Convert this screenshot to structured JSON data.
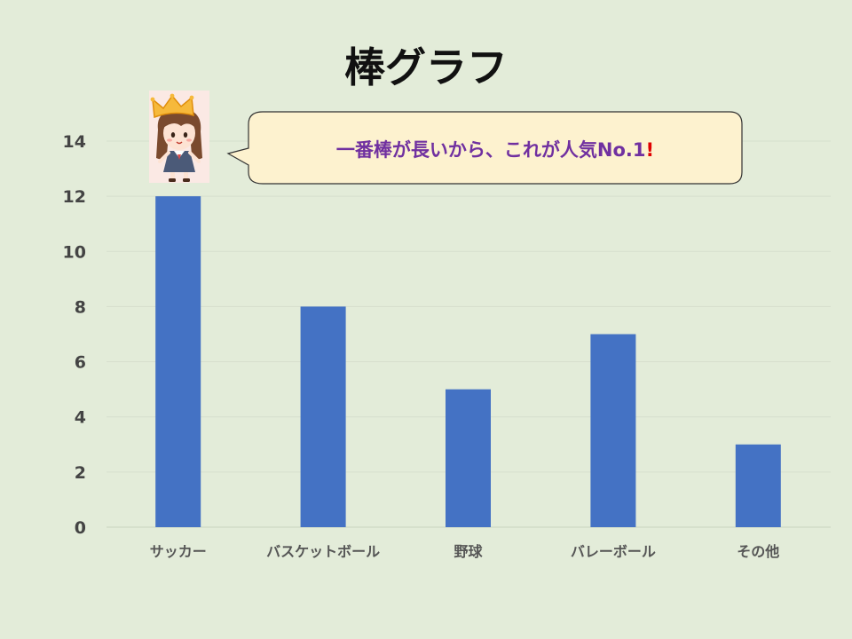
{
  "chart_data": {
    "type": "bar",
    "title": "棒グラフ",
    "categories": [
      "サッカー",
      "バスケットボール",
      "野球",
      "バレーボール",
      "その他"
    ],
    "values": [
      12,
      8,
      5,
      7,
      3
    ],
    "ylim": [
      0,
      14
    ],
    "yticks": [
      0,
      2,
      4,
      6,
      8,
      10,
      12,
      14
    ],
    "grid": true,
    "bar_color": "#4472c4"
  },
  "callout": {
    "text": "一番棒が長いから、これが人気No.1",
    "exclamation": "!"
  },
  "colors": {
    "background": "#e3ecd9",
    "callout_fill": "#fdf2cf",
    "callout_text": "#7030a0",
    "exclamation": "#e00000"
  },
  "illustration": {
    "icon": "girl-with-crown-icon"
  }
}
